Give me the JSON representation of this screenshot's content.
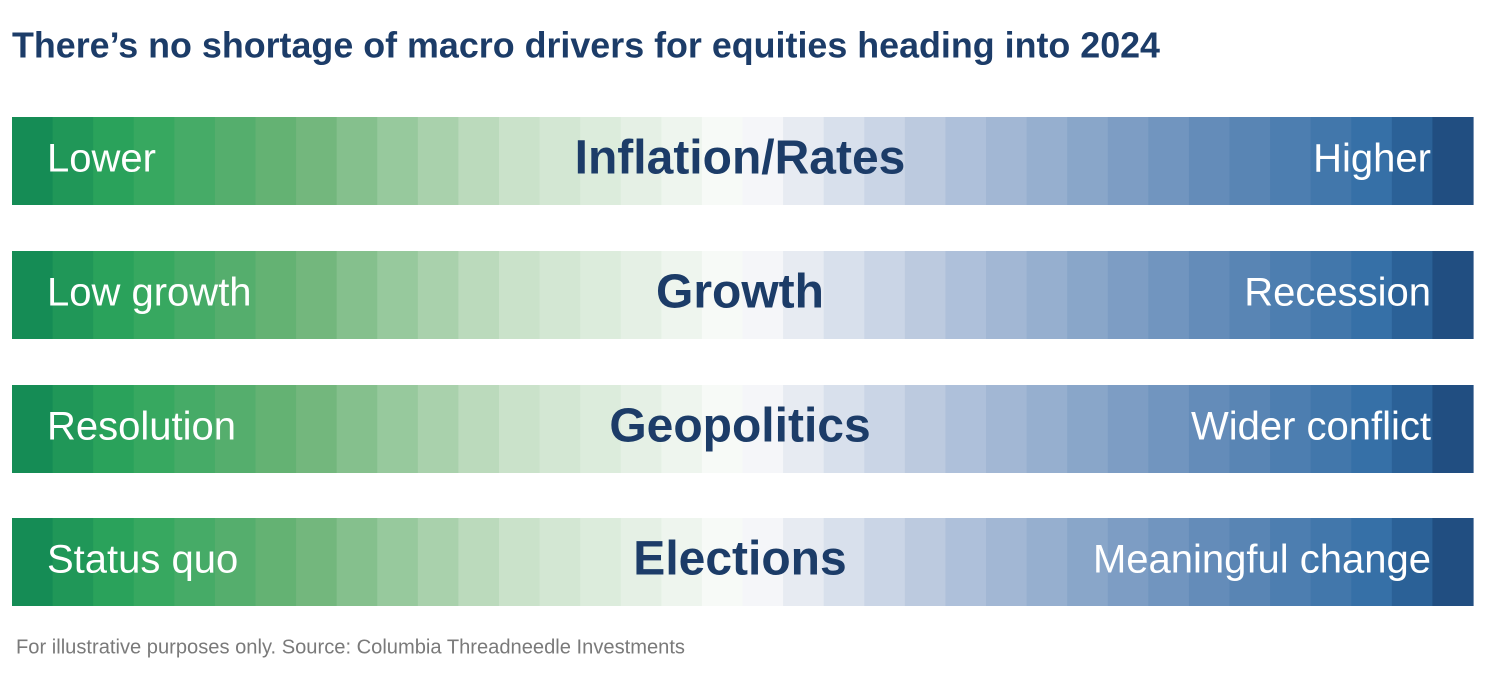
{
  "title": "There’s no shortage of macro drivers for equities heading into 2024",
  "rows": [
    {
      "left": "Lower",
      "center": "Inflation/Rates",
      "right": "Higher"
    },
    {
      "left": "Low growth",
      "center": "Growth",
      "right": "Recession"
    },
    {
      "left": "Resolution",
      "center": "Geopolitics",
      "right": "Wider conflict"
    },
    {
      "left": "Status quo",
      "center": "Elections",
      "right": "Meaningful change"
    }
  ],
  "footnote": "For illustrative purposes only. Source: Columbia Threadneedle Investments"
}
